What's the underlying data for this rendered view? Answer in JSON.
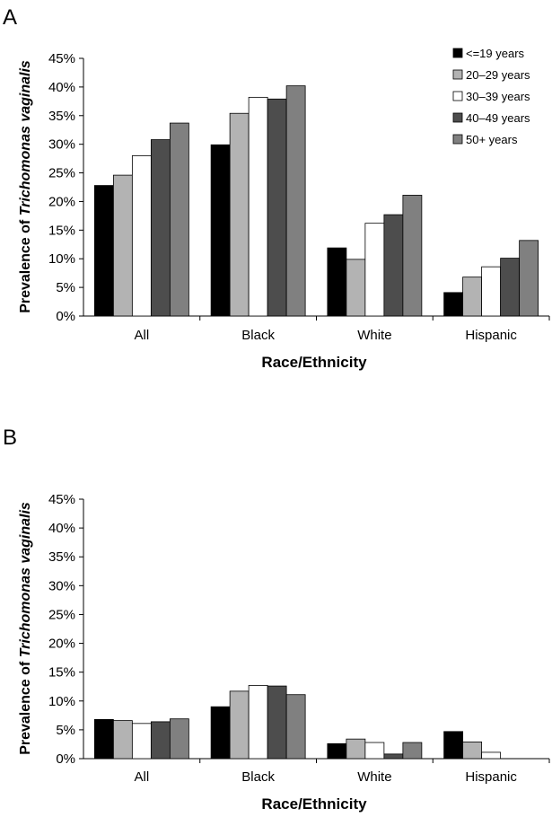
{
  "chart_data": [
    {
      "panel": "A",
      "type": "bar",
      "xlabel": "Race/Ethnicity",
      "ylabel_prefix": "Prevalence of ",
      "ylabel_italic": "Trichomonas vaginalis",
      "ylim": [
        0,
        45
      ],
      "yticks": [
        "0%",
        "5%",
        "10%",
        "15%",
        "20%",
        "25%",
        "30%",
        "35%",
        "40%",
        "45%"
      ],
      "categories": [
        "All",
        "Black",
        "White",
        "Hispanic"
      ],
      "legend_position": "top-right",
      "series": [
        {
          "name": "<=19 years",
          "color": "#000000",
          "values": [
            22.8,
            29.9,
            11.9,
            4.1
          ]
        },
        {
          "name": "20–29 years",
          "color": "#b3b3b3",
          "values": [
            24.6,
            35.4,
            9.9,
            6.8
          ]
        },
        {
          "name": "30–39 years",
          "color": "#ffffff",
          "values": [
            28.0,
            38.2,
            16.2,
            8.6
          ]
        },
        {
          "name": "40–49 years",
          "color": "#4d4d4d",
          "values": [
            30.8,
            37.9,
            17.7,
            10.1
          ]
        },
        {
          "name": "50+ years",
          "color": "#808080",
          "values": [
            33.7,
            40.2,
            21.1,
            13.2
          ]
        }
      ]
    },
    {
      "panel": "B",
      "type": "bar",
      "xlabel": "Race/Ethnicity",
      "ylabel_prefix": "Prevalence of ",
      "ylabel_italic": "Trichomonas vaginalis",
      "ylim": [
        0,
        45
      ],
      "yticks": [
        "0%",
        "5%",
        "10%",
        "15%",
        "20%",
        "25%",
        "30%",
        "35%",
        "40%",
        "45%"
      ],
      "categories": [
        "All",
        "Black",
        "White",
        "Hispanic"
      ],
      "series": [
        {
          "name": "<=19 years",
          "color": "#000000",
          "values": [
            6.8,
            9.0,
            2.6,
            4.7
          ]
        },
        {
          "name": "20–29 years",
          "color": "#b3b3b3",
          "values": [
            6.6,
            11.7,
            3.4,
            2.9
          ]
        },
        {
          "name": "30–39 years",
          "color": "#ffffff",
          "values": [
            6.1,
            12.7,
            2.8,
            1.1
          ]
        },
        {
          "name": "40–49 years",
          "color": "#4d4d4d",
          "values": [
            6.4,
            12.6,
            0.8,
            0.0
          ]
        },
        {
          "name": "50+ years",
          "color": "#808080",
          "values": [
            6.9,
            11.1,
            2.8,
            0.0
          ]
        }
      ]
    }
  ]
}
